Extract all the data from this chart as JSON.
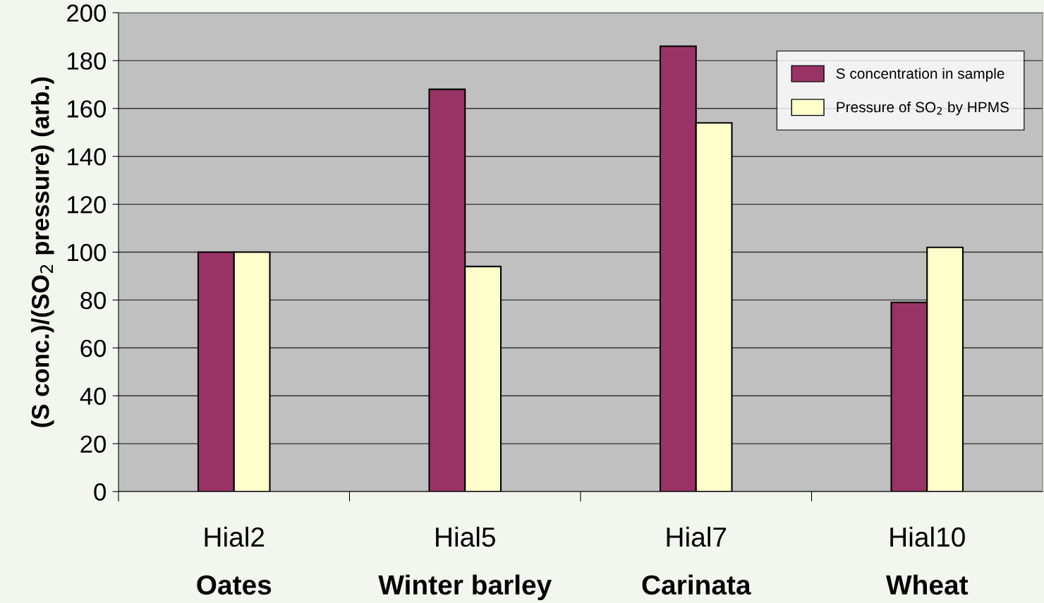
{
  "chart_data": {
    "type": "bar",
    "categories": [
      "Hial2\nOates",
      "Hial5\nWinter barley",
      "Hial7\nCarinata",
      "Hial10\nWheat"
    ],
    "ylabel": "(S conc.)/(SO$_{2}$ pressure) (arb.)",
    "series": [
      {
        "name": "S concentration in sample",
        "color": "#993366",
        "values": [
          100,
          168,
          186,
          79
        ]
      },
      {
        "name": "Pressure of SO$_{2}$ by HPMS",
        "color": "#ffffcc",
        "values": [
          100,
          94,
          154,
          102
        ]
      }
    ],
    "ylim": [
      0,
      200
    ],
    "yticks": [
      0,
      20,
      40,
      60,
      80,
      100,
      120,
      140,
      160,
      180,
      200
    ],
    "grid": "y",
    "legend": "top right"
  }
}
